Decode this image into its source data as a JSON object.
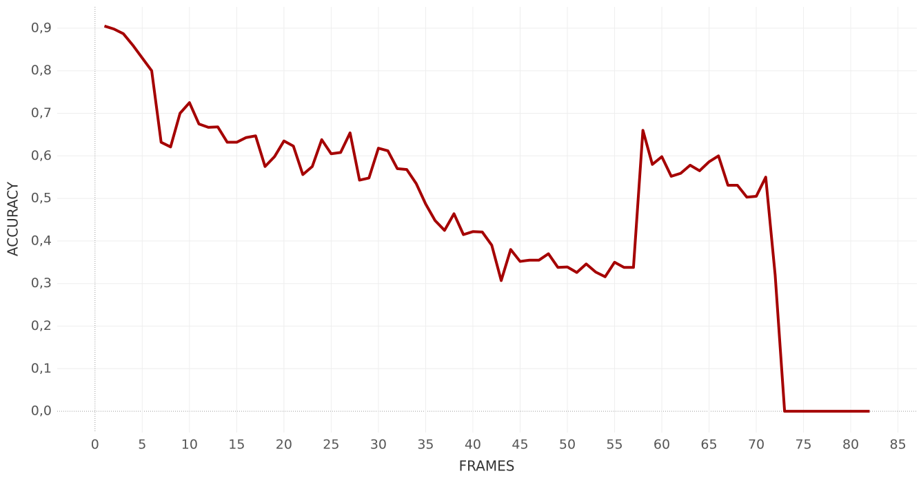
{
  "chart_data": {
    "type": "line",
    "x_label": "FRAMES",
    "y_label": "ACCURACY",
    "x": [
      1,
      2,
      3,
      4,
      5,
      6,
      7,
      8,
      9,
      10,
      11,
      12,
      13,
      14,
      15,
      16,
      17,
      18,
      19,
      20,
      21,
      22,
      23,
      24,
      25,
      26,
      27,
      28,
      29,
      30,
      31,
      32,
      33,
      34,
      35,
      36,
      37,
      38,
      39,
      40,
      41,
      42,
      43,
      44,
      45,
      46,
      47,
      48,
      49,
      50,
      51,
      52,
      53,
      54,
      55,
      56,
      57,
      58,
      59,
      60,
      61,
      62,
      63,
      64,
      65,
      66,
      67,
      68,
      69,
      70,
      71,
      72,
      73,
      74,
      75,
      76,
      77,
      78,
      79,
      80,
      81,
      82
    ],
    "series": [
      {
        "name": "ACCURACY",
        "color": "#a50000",
        "values": [
          0.905,
          0.898,
          0.887,
          0.86,
          0.83,
          0.8,
          0.632,
          0.621,
          0.7,
          0.725,
          0.675,
          0.667,
          0.668,
          0.632,
          0.632,
          0.643,
          0.647,
          0.575,
          0.598,
          0.635,
          0.623,
          0.556,
          0.575,
          0.638,
          0.605,
          0.608,
          0.654,
          0.543,
          0.548,
          0.618,
          0.612,
          0.57,
          0.568,
          0.535,
          0.487,
          0.448,
          0.425,
          0.464,
          0.415,
          0.422,
          0.421,
          0.39,
          0.307,
          0.38,
          0.352,
          0.355,
          0.355,
          0.37,
          0.338,
          0.339,
          0.326,
          0.346,
          0.327,
          0.316,
          0.35,
          0.338,
          0.338,
          0.66,
          0.58,
          0.598,
          0.552,
          0.559,
          0.578,
          0.565,
          0.586,
          0.6,
          0.531,
          0.531,
          0.503,
          0.505,
          0.55,
          0.32,
          0,
          0,
          0,
          0,
          0,
          0,
          0,
          0,
          0,
          0
        ]
      }
    ],
    "xlim": [
      -4,
      87
    ],
    "ylim": [
      -0.05,
      0.95
    ],
    "xticks": [
      0,
      5,
      10,
      15,
      20,
      25,
      30,
      35,
      40,
      45,
      50,
      55,
      60,
      65,
      70,
      75,
      80,
      85
    ],
    "yticks": [
      {
        "value": 0,
        "label": "0,0"
      },
      {
        "value": 0.1,
        "label": "0,1"
      },
      {
        "value": 0.2,
        "label": "0,2"
      },
      {
        "value": 0.3,
        "label": "0,3"
      },
      {
        "value": 0.4,
        "label": "0,4"
      },
      {
        "value": 0.5,
        "label": "0,5"
      },
      {
        "value": 0.6,
        "label": "0,6"
      },
      {
        "value": 0.7,
        "label": "0,7"
      },
      {
        "value": 0.8,
        "label": "0,8"
      },
      {
        "value": 0.9,
        "label": "0,9"
      }
    ],
    "grid": true
  }
}
